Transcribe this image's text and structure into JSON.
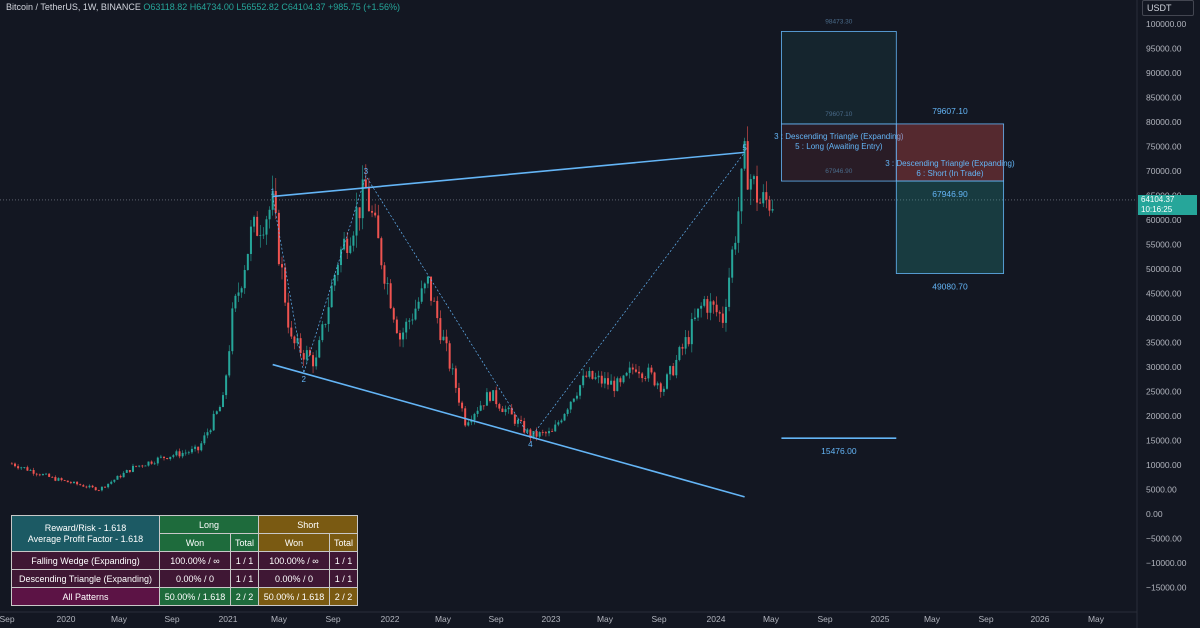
{
  "header": {
    "symbol": "Bitcoin / TetherUS, 1W, BINANCE",
    "open": "O63118.82",
    "high": "H64734.00",
    "low": "L56552.82",
    "close": "C64104.37",
    "change": "+985.75 (+1.56%)"
  },
  "currency": "USDT",
  "price_badge": {
    "price": "64104.37",
    "countdown": "10:16:25"
  },
  "colors": {
    "background": "#131722",
    "bull": "#26a69a",
    "bear": "#ef5350",
    "pattern_line": "#64b5f6",
    "text_muted": "#8a8f9c"
  },
  "chart_data": {
    "type": "candlestick",
    "symbol": "BTC/USDT",
    "timeframe": "1W",
    "x_tick_labels": [
      "Sep",
      "2020",
      "May",
      "Sep",
      "2021",
      "May",
      "Sep",
      "2022",
      "May",
      "Sep",
      "2023",
      "May",
      "Sep",
      "2024",
      "May",
      "Sep",
      "2025",
      "May",
      "Sep",
      "2026",
      "May"
    ],
    "y_tick_labels": [
      "100000.00",
      "95000.00",
      "90000.00",
      "85000.00",
      "80000.00",
      "75000.00",
      "70000.00",
      "65000.00",
      "60000.00",
      "55000.00",
      "50000.00",
      "45000.00",
      "40000.00",
      "35000.00",
      "30000.00",
      "25000.00",
      "20000.00",
      "15000.00",
      "10000.00",
      "5000.00",
      "0.00",
      "−5000.00",
      "−10000.00",
      "−15000.00"
    ],
    "ylim": [
      -17000,
      103000
    ],
    "current_price": 64104.37,
    "price_path": [
      [
        "2019-09-01",
        10300
      ],
      [
        "2019-12-01",
        7300
      ],
      [
        "2020-03-15",
        5000
      ],
      [
        "2020-06-01",
        9500
      ],
      [
        "2020-08-15",
        11800
      ],
      [
        "2020-10-25",
        13100
      ],
      [
        "2020-12-20",
        23000
      ],
      [
        "2021-01-10",
        40000
      ],
      [
        "2021-02-21",
        57000
      ],
      [
        "2021-04-11",
        63000
      ],
      [
        "2021-05-23",
        35000
      ],
      [
        "2021-07-18",
        31000
      ],
      [
        "2021-09-05",
        52000
      ],
      [
        "2021-11-07",
        66000
      ],
      [
        "2022-01-23",
        36000
      ],
      [
        "2022-03-27",
        47000
      ],
      [
        "2022-06-19",
        19000
      ],
      [
        "2022-08-14",
        24500
      ],
      [
        "2022-11-13",
        16000
      ],
      [
        "2023-01-01",
        16500
      ],
      [
        "2023-02-19",
        24500
      ],
      [
        "2023-03-19",
        28000
      ],
      [
        "2023-06-04",
        26000
      ],
      [
        "2023-07-09",
        30500
      ],
      [
        "2023-09-10",
        26000
      ],
      [
        "2023-10-29",
        35000
      ],
      [
        "2023-12-10",
        43500
      ],
      [
        "2024-01-21",
        40000
      ],
      [
        "2024-02-25",
        62000
      ],
      [
        "2024-03-10",
        72000
      ],
      [
        "2024-04-14",
        63500
      ],
      [
        "2024-05-12",
        64104
      ]
    ],
    "pattern_lines": [
      {
        "name": "Falling Wedge (Expanding)",
        "from": [
          "2021-04-11",
          64800
        ],
        "to": [
          "2024-03-10",
          73800
        ]
      },
      {
        "name": "Falling Wedge (Expanding)",
        "from": [
          "2021-04-11",
          30500
        ],
        "to": [
          "2024-03-10",
          3500
        ]
      }
    ],
    "zigzag": [
      {
        "label": "1",
        "point": [
          "2021-04-11",
          64800
        ]
      },
      {
        "label": "2",
        "point": [
          "2021-06-20",
          28800
        ]
      },
      {
        "label": "3",
        "point": [
          "2021-11-07",
          69000
        ]
      },
      {
        "label": "4",
        "point": [
          "2022-11-13",
          15500
        ]
      },
      {
        "label": "5",
        "point": [
          "2024-03-10",
          73800
        ]
      }
    ],
    "projections": [
      {
        "label": "3 : Descending Triangle (Expanding)\n5 : Long (Awaiting Entry)",
        "x_range": [
          "2024-06-01",
          "2025-02-15"
        ],
        "target": 98473.3,
        "entry": 79607.1,
        "stop": 67946.9,
        "level_labels": [
          "98473.30",
          "79607.10",
          "67946.90"
        ]
      },
      {
        "label": "3 : Descending Triangle (Expanding)\n6 : Short (In Trade)",
        "x_range": [
          "2025-02-15",
          "2025-10-15"
        ],
        "stop": 79607.1,
        "entry": 67946.9,
        "target": 49080.7,
        "level_labels": [
          "79607.10",
          "67946.90",
          "49080.70"
        ]
      }
    ],
    "support_line": {
      "value": 15476.0,
      "label": "15476.00",
      "x_range": [
        "2024-06-01",
        "2025-02-15"
      ]
    }
  },
  "stats_table": {
    "title": "Reward/Risk - 1.618",
    "subtitle": "Average Profit Factor - 1.618",
    "long_header": "Long",
    "short_header": "Short",
    "won_label": "Won",
    "total_label": "Total",
    "rows": [
      {
        "name": "Falling Wedge (Expanding)",
        "long_won": "100.00% / ∞",
        "long_total": "1 / 1",
        "short_won": "100.00% / ∞",
        "short_total": "1 / 1"
      },
      {
        "name": "Descending Triangle (Expanding)",
        "long_won": "0.00% / 0",
        "long_total": "1 / 1",
        "short_won": "0.00% / 0",
        "short_total": "1 / 1"
      },
      {
        "name": "All Patterns",
        "long_won": "50.00% / 1.618",
        "long_total": "2 / 2",
        "short_won": "50.00% / 1.618",
        "short_total": "2 / 2"
      }
    ]
  }
}
